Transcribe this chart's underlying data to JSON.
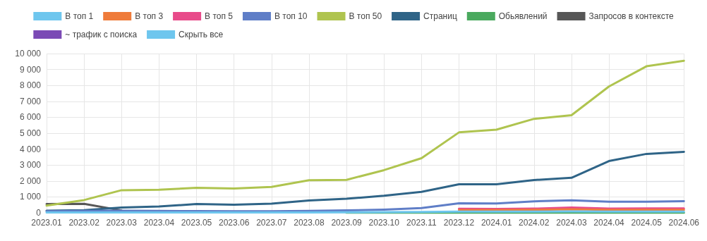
{
  "chart_data": {
    "type": "line",
    "categories": [
      "2023.01",
      "2023.02",
      "2023.03",
      "2023.04",
      "2023.05",
      "2023.06",
      "2023.07",
      "2023.08",
      "2023.09",
      "2023.10",
      "2023.11",
      "2023.12",
      "2024.01",
      "2024.02",
      "2024.03",
      "2024.04",
      "2024.05",
      "2024.06"
    ],
    "series": [
      {
        "name": "В топ 1",
        "color": "#6ec6ee",
        "values": [
          20,
          20,
          20,
          20,
          20,
          20,
          20,
          20,
          30,
          40,
          50,
          80,
          80,
          80,
          90,
          80,
          80,
          80
        ]
      },
      {
        "name": "В топ 3",
        "color": "#ef7b3a",
        "values": [
          null,
          null,
          null,
          null,
          null,
          null,
          null,
          null,
          null,
          null,
          null,
          180,
          180,
          190,
          220,
          190,
          190,
          190
        ]
      },
      {
        "name": "В топ 5",
        "color": "#e84b8a",
        "values": [
          null,
          null,
          null,
          null,
          null,
          null,
          null,
          null,
          null,
          null,
          null,
          250,
          240,
          260,
          330,
          270,
          280,
          280
        ]
      },
      {
        "name": "В топ 10",
        "color": "#5f7ec7",
        "values": [
          100,
          120,
          130,
          120,
          110,
          100,
          100,
          120,
          150,
          200,
          300,
          600,
          590,
          720,
          780,
          700,
          700,
          730
        ]
      },
      {
        "name": "В топ 50",
        "color": "#afc44f",
        "values": [
          450,
          800,
          1420,
          1450,
          1570,
          1530,
          1630,
          2050,
          2070,
          2680,
          3430,
          5050,
          5220,
          5900,
          6130,
          7930,
          9200,
          9550
        ]
      },
      {
        "name": "Страниц",
        "color": "#2f6487",
        "values": [
          130,
          170,
          330,
          400,
          550,
          510,
          580,
          770,
          880,
          1070,
          1320,
          1790,
          1790,
          2060,
          2200,
          3250,
          3700,
          3830
        ]
      },
      {
        "name": "Обьявлений",
        "color": "#4aa95e",
        "values": [
          null,
          null,
          null,
          null,
          null,
          null,
          null,
          null,
          0,
          0,
          0,
          0,
          0,
          0,
          0,
          0,
          0,
          0
        ]
      },
      {
        "name": "Запросов в контексте",
        "color": "#575757",
        "values": [
          550,
          560,
          150,
          null,
          null,
          null,
          null,
          null,
          null,
          null,
          null,
          null,
          null,
          null,
          null,
          null,
          null,
          null
        ]
      },
      {
        "name": "~ трафик с поиска",
        "color": "#7b4ab5",
        "values": [
          null,
          null,
          null,
          null,
          null,
          null,
          null,
          null,
          null,
          null,
          null,
          null,
          null,
          null,
          null,
          null,
          null,
          null
        ]
      },
      {
        "name": "Скрыть все",
        "color": "#6ec6ee",
        "values": [
          null,
          null,
          null,
          null,
          null,
          null,
          null,
          null,
          null,
          null,
          null,
          null,
          null,
          null,
          null,
          null,
          null,
          null
        ]
      }
    ],
    "ylim": [
      0,
      10000
    ],
    "yticks": [
      0,
      1000,
      2000,
      3000,
      4000,
      5000,
      6000,
      7000,
      8000,
      9000,
      10000
    ],
    "grid": true,
    "legend": "top",
    "marker": "none",
    "line_style": "solid"
  }
}
